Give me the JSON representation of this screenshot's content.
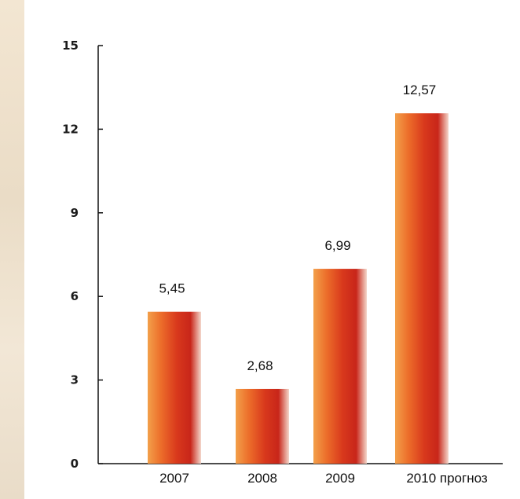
{
  "colors": {
    "bar_gradient": [
      "#f3a04a",
      "#ec6d2a",
      "#d8381c",
      "#c8261a",
      "#f4d7ca"
    ],
    "axis": "#111111",
    "background": "#ffffff"
  },
  "chart_data": {
    "type": "bar",
    "categories": [
      "2007",
      "2008",
      "2009",
      "2010 прогноз"
    ],
    "values": [
      5.45,
      2.68,
      6.99,
      12.57
    ],
    "value_labels": [
      "5,45",
      "2,68",
      "6,99",
      "12,57"
    ],
    "yticks": [
      0,
      3,
      6,
      9,
      12,
      15
    ],
    "ytick_labels": [
      "0",
      "3",
      "6",
      "9",
      "12",
      "15"
    ],
    "ylim": [
      0,
      15
    ],
    "title": "",
    "xlabel": "",
    "ylabel": "",
    "grid": false,
    "legend": "none"
  }
}
